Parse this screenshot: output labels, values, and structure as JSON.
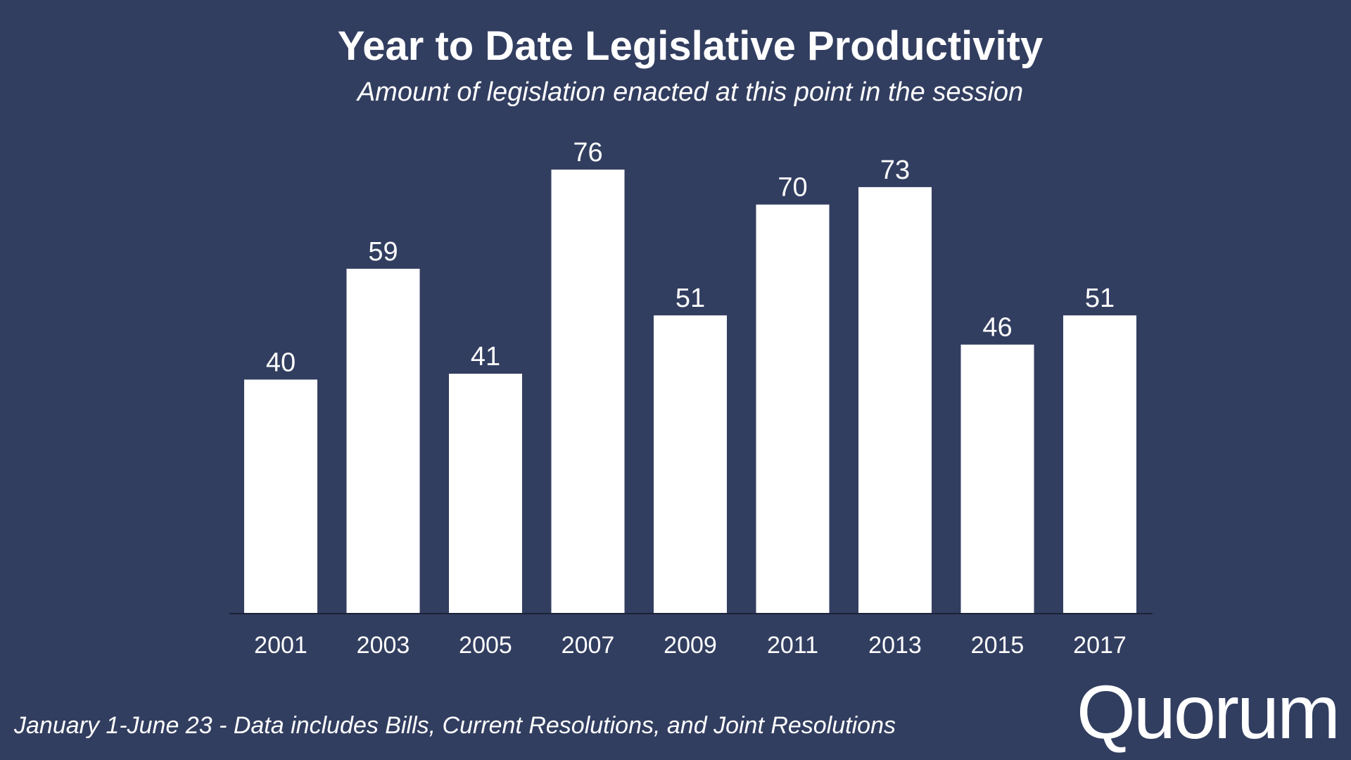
{
  "title": "Year to Date Legislative Productivity",
  "subtitle": "Amount of legislation enacted at this point in the session",
  "footnote": "January 1-June 23 - Data includes Bills, Current Resolutions, and Joint Resolutions",
  "logo_text": "Quorum",
  "colors": {
    "background": "#323e60",
    "bar": "#ffffff",
    "text": "#ffffff",
    "axis": "#1c2236"
  },
  "chart_data": {
    "type": "bar",
    "title": "Year to Date Legislative Productivity",
    "subtitle": "Amount of legislation enacted at this point in the session",
    "xlabel": "",
    "ylabel": "",
    "categories": [
      "2001",
      "2003",
      "2005",
      "2007",
      "2009",
      "2011",
      "2013",
      "2015",
      "2017"
    ],
    "values": [
      40,
      59,
      41,
      76,
      51,
      70,
      73,
      46,
      51
    ],
    "data_labels": [
      "40",
      "59",
      "41",
      "76",
      "51",
      "70",
      "73",
      "46",
      "51"
    ],
    "ylim": [
      0,
      76
    ],
    "grid": false,
    "legend": "none"
  }
}
